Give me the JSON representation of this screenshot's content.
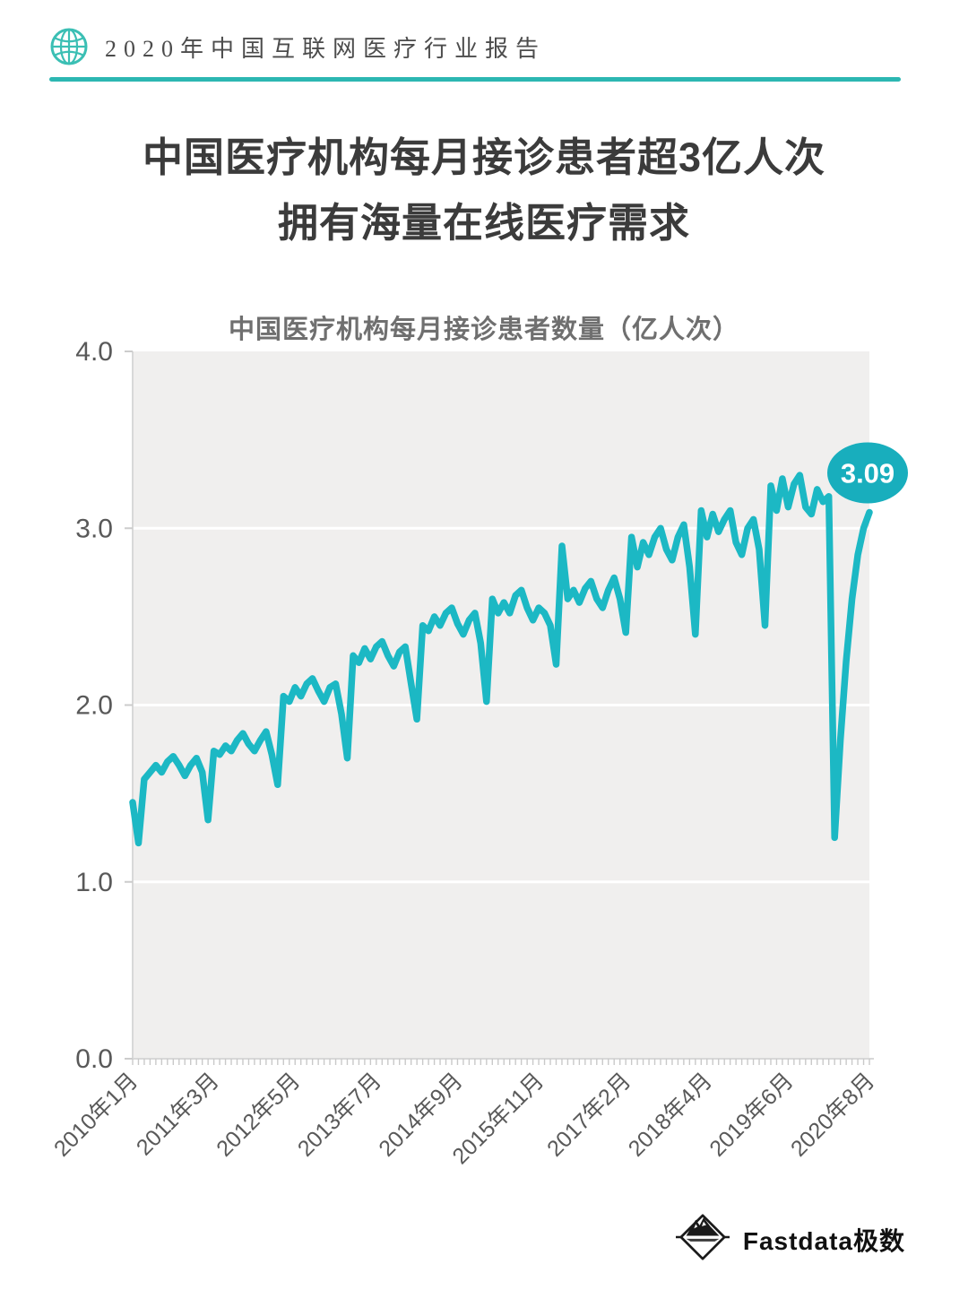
{
  "header": {
    "title": "2020年中国互联网医疗行业报告",
    "icon": "globe-icon"
  },
  "title": {
    "line1": "中国医疗机构每月接诊患者超3亿人次",
    "line2": "拥有海量在线医疗需求"
  },
  "chart_data": {
    "type": "line",
    "title": "中国医疗机构每月接诊患者数量（亿人次）",
    "x_unit": "month",
    "x_range": [
      "2010年1月",
      "2020年8月"
    ],
    "ylim": [
      0.0,
      4.0
    ],
    "y_ticks": [
      "0.0",
      "1.0",
      "2.0",
      "3.0",
      "4.0"
    ],
    "grid": "horizontal white lines on light-gray plot area",
    "legend": "none",
    "x_tick_labels": [
      {
        "index": 0,
        "label": "2010年1月"
      },
      {
        "index": 14,
        "label": "2011年3月"
      },
      {
        "index": 28,
        "label": "2012年5月"
      },
      {
        "index": 42,
        "label": "2013年7月"
      },
      {
        "index": 56,
        "label": "2014年9月"
      },
      {
        "index": 70,
        "label": "2015年11月"
      },
      {
        "index": 85,
        "label": "2017年2月"
      },
      {
        "index": 99,
        "label": "2018年4月"
      },
      {
        "index": 113,
        "label": "2019年6月"
      },
      {
        "index": 127,
        "label": "2020年8月"
      }
    ],
    "series": [
      {
        "name": "每月接诊患者数量",
        "values": [
          1.45,
          1.22,
          1.58,
          1.62,
          1.66,
          1.62,
          1.68,
          1.71,
          1.66,
          1.6,
          1.66,
          1.7,
          1.62,
          1.35,
          1.74,
          1.72,
          1.77,
          1.74,
          1.8,
          1.84,
          1.78,
          1.74,
          1.8,
          1.85,
          1.72,
          1.55,
          2.05,
          2.02,
          2.1,
          2.05,
          2.12,
          2.15,
          2.08,
          2.02,
          2.1,
          2.12,
          1.95,
          1.7,
          2.28,
          2.24,
          2.32,
          2.26,
          2.33,
          2.36,
          2.28,
          2.22,
          2.3,
          2.33,
          2.12,
          1.92,
          2.45,
          2.42,
          2.5,
          2.45,
          2.52,
          2.55,
          2.46,
          2.4,
          2.48,
          2.52,
          2.35,
          2.02,
          2.6,
          2.52,
          2.58,
          2.52,
          2.62,
          2.65,
          2.55,
          2.48,
          2.55,
          2.52,
          2.45,
          2.23,
          2.9,
          2.6,
          2.65,
          2.58,
          2.66,
          2.7,
          2.6,
          2.55,
          2.65,
          2.72,
          2.6,
          2.41,
          2.95,
          2.78,
          2.92,
          2.85,
          2.95,
          3.0,
          2.88,
          2.82,
          2.95,
          3.02,
          2.78,
          2.4,
          3.1,
          2.95,
          3.08,
          2.98,
          3.05,
          3.1,
          2.92,
          2.85,
          3.0,
          3.05,
          2.88,
          2.45,
          3.24,
          3.1,
          3.28,
          3.12,
          3.25,
          3.3,
          3.12,
          3.08,
          3.22,
          3.15,
          3.18,
          1.25,
          1.8,
          2.25,
          2.6,
          2.85,
          3.0,
          3.09
        ]
      }
    ],
    "annotation": {
      "label": "3.09",
      "series_index": 127,
      "value": 3.09
    }
  },
  "colors": {
    "accent_teal": "#1cb8c4",
    "badge_teal": "#18aebd",
    "header_teal": "#2cb7b2",
    "plot_bg": "#f0efee",
    "grid_white": "#ffffff",
    "axis_line": "#d8d8d8",
    "axis_text": "#595959",
    "title_text": "#3b3b3b",
    "subtitle_text": "#6f6f6f"
  },
  "footer": {
    "brand": "Fastdata极数",
    "icon": "fastdata-diamond-mountain-icon"
  }
}
